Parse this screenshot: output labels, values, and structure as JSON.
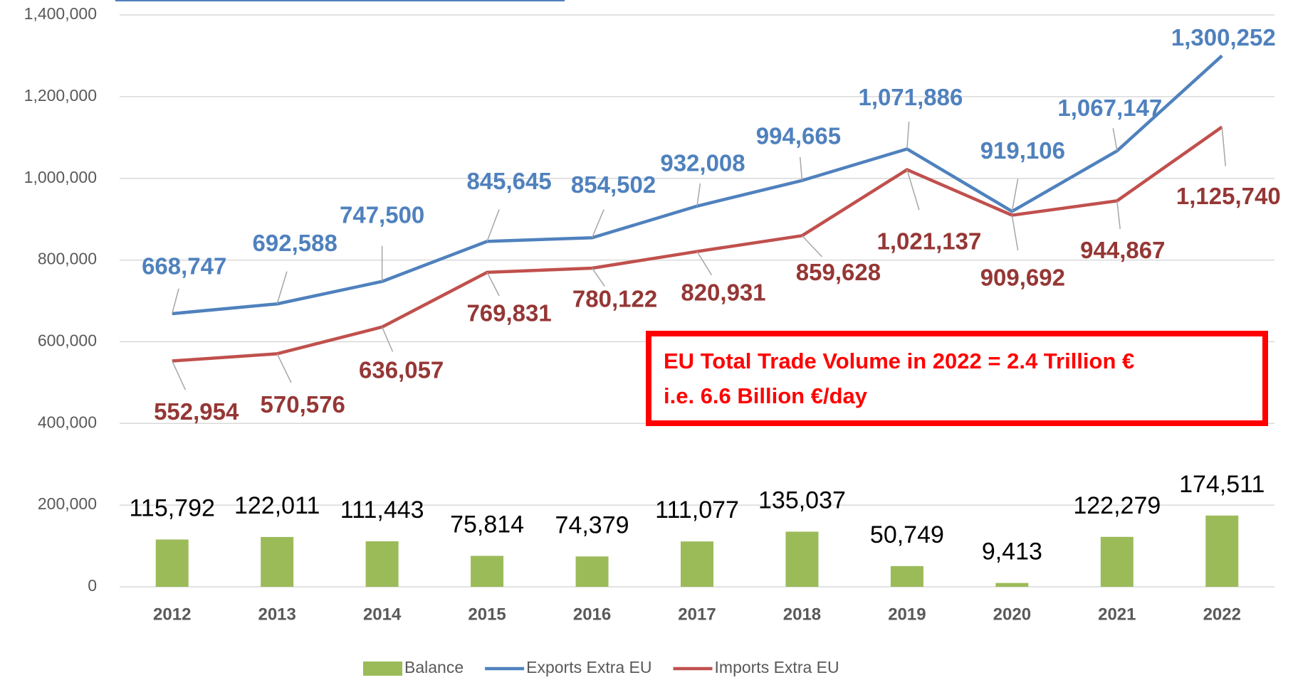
{
  "chart_data": {
    "type": "combo",
    "categories": [
      "2012",
      "2013",
      "2014",
      "2015",
      "2016",
      "2017",
      "2018",
      "2019",
      "2020",
      "2021",
      "2022"
    ],
    "series": [
      {
        "name": "Balance",
        "type": "bar",
        "color": "#9bbb59",
        "values": [
          115792,
          122011,
          111443,
          75814,
          74379,
          111077,
          135037,
          50749,
          9413,
          122279,
          174511
        ],
        "value_labels": [
          "115,792",
          "122,011",
          "111,443",
          "75,814",
          "74,379",
          "111,077",
          "135,037",
          "50,749",
          "9,413",
          "122,279",
          "174,511"
        ]
      },
      {
        "name": "Exports Extra EU",
        "type": "line",
        "color": "#4f81bd",
        "values": [
          668747,
          692588,
          747500,
          845645,
          854502,
          932008,
          994665,
          1071886,
          919106,
          1067147,
          1300252
        ],
        "value_labels": [
          "668,747",
          "692,588",
          "747,500",
          "845,645",
          "854,502",
          "932,008",
          "994,665",
          "1,071,886",
          "919,106",
          "1,067,147",
          "1,300,252"
        ]
      },
      {
        "name": "Imports Extra EU",
        "type": "line",
        "color": "#c0504d",
        "values": [
          552954,
          570576,
          636057,
          769831,
          780122,
          820931,
          859628,
          1021137,
          909692,
          944867,
          1125740
        ],
        "value_labels": [
          "552,954",
          "570,576",
          "636,057",
          "769,831",
          "780,122",
          "820,931",
          "859,628",
          "1,021,137",
          "909,692",
          "944,867",
          "1,125,740"
        ]
      }
    ],
    "ylim": [
      0,
      1400000
    ],
    "yticks": [
      0,
      {
        "value": 200000,
        "label": "200,000"
      },
      {
        "value": 400000,
        "label": "400,000"
      },
      {
        "value": 600000,
        "label": "600,000"
      },
      {
        "value": 800000,
        "label": "800,000"
      },
      {
        "value": 1000000,
        "label": "1,000,000"
      },
      {
        "value": 1200000,
        "label": "1,200,000"
      },
      {
        "value": 1400000,
        "label": "1,400,000"
      }
    ],
    "grid": true,
    "legend": "bottom",
    "annotation": [
      "EU Total Trade Volume in 2022 = 2.4 Trillion €",
      "i.e. 6.6 Billion €/day"
    ]
  }
}
